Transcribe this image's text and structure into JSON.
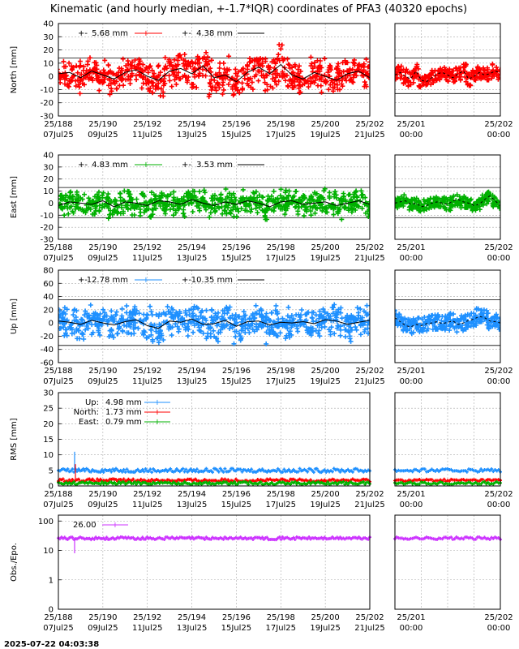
{
  "title": "Kinematic (and hourly median, +-1.7*IQR) coordinates of PFA3 (40320 epochs)",
  "timestamp": "2025-07-22 04:03:38",
  "colors": {
    "north": "#ff0000",
    "east": "#00b000",
    "up": "#1e90ff",
    "obs": "#cc33ff",
    "median": "#000000",
    "grid": "#aaaaaa"
  },
  "chart_data": [
    {
      "type": "scatter",
      "name": "north",
      "ylabel": "North [mm]",
      "ylim": [
        -30,
        40
      ],
      "yticks": [
        "40",
        "30",
        "20",
        "10",
        "0",
        "-10",
        "-20",
        "-30"
      ],
      "iqr_band": [
        -13,
        14
      ],
      "series": [
        {
          "name": "5.68 mm",
          "color": "#ff0000",
          "x": [
            188,
            188.5,
            189,
            189.5,
            190,
            190.5,
            191,
            191.5,
            192,
            192.5,
            193,
            193.5,
            194,
            194.5,
            195,
            195.5,
            196,
            196.5,
            197,
            197.5,
            198,
            198.5,
            199,
            199.5,
            200,
            200.5,
            201,
            201.5,
            202
          ],
          "y": [
            2,
            3,
            -1,
            4,
            1,
            -2,
            3,
            5,
            0,
            -3,
            4,
            6,
            2,
            8,
            -1,
            1,
            -4,
            3,
            7,
            2,
            9,
            1,
            -2,
            3,
            0,
            -3,
            2,
            4,
            -1
          ],
          "spread": [
            10,
            11,
            12,
            10,
            11,
            12,
            13,
            10,
            14,
            12,
            11,
            13,
            15,
            12,
            13,
            14,
            12,
            13,
            11,
            14,
            15,
            12,
            10,
            11,
            12,
            13,
            11,
            12,
            14
          ]
        },
        {
          "name": "4.38 mm",
          "color": "#000000"
        }
      ],
      "zoom_x": [
        201,
        202
      ],
      "zoom_y": [
        1,
        3,
        0,
        -2,
        4,
        -3,
        -4,
        -1,
        2,
        3,
        1,
        -1,
        2,
        4,
        -2,
        0,
        3,
        1,
        2,
        4,
        3
      ],
      "xticks_main": [
        "25/188",
        "25/190",
        "25/192",
        "25/194",
        "25/196",
        "25/198",
        "25/200",
        "25/202"
      ],
      "xtick_dates": [
        "07Jul25",
        "09Jul25",
        "11Jul25",
        "13Jul25",
        "15Jul25",
        "17Jul25",
        "19Jul25",
        "21Jul25"
      ],
      "xticks_zoom": [
        "25/201",
        "25/202"
      ],
      "xtick_zoom_times": [
        "00:00",
        "00:00"
      ]
    },
    {
      "type": "scatter",
      "name": "east",
      "ylabel": "East [mm]",
      "ylim": [
        -30,
        40
      ],
      "yticks": [
        "40",
        "30",
        "20",
        "10",
        "0",
        "-10",
        "-20",
        "-30"
      ],
      "iqr_band": [
        -12,
        13
      ],
      "series": [
        {
          "name": "4.83 mm",
          "color": "#00b000",
          "x": [
            188,
            188.5,
            189,
            189.5,
            190,
            190.5,
            191,
            191.5,
            192,
            192.5,
            193,
            193.5,
            194,
            194.5,
            195,
            195.5,
            196,
            196.5,
            197,
            197.5,
            198,
            198.5,
            199,
            199.5,
            200,
            200.5,
            201,
            201.5,
            202
          ],
          "y": [
            -2,
            1,
            0,
            -1,
            2,
            -3,
            1,
            0,
            -2,
            2,
            1,
            -1,
            3,
            0,
            -2,
            1,
            -1,
            2,
            0,
            -3,
            1,
            2,
            -1,
            0,
            1,
            -2,
            0,
            2,
            -1
          ],
          "spread": [
            9,
            10,
            9,
            8,
            10,
            11,
            9,
            10,
            12,
            9,
            10,
            11,
            9,
            10,
            9,
            10,
            11,
            9,
            12,
            13,
            10,
            9,
            10,
            9,
            10,
            11,
            9,
            10,
            12
          ]
        },
        {
          "name": "3.53 mm",
          "color": "#000000"
        }
      ],
      "zoom_x": [
        201,
        202
      ],
      "zoom_y": [
        0,
        1,
        2,
        -1,
        0,
        -3,
        -2,
        0,
        1,
        0,
        -1,
        2,
        3,
        1,
        0,
        -2,
        -1,
        3,
        6,
        2,
        -2
      ],
      "xticks_main": [
        "25/188",
        "25/190",
        "25/192",
        "25/194",
        "25/196",
        "25/198",
        "25/200",
        "25/202"
      ],
      "xtick_dates": [
        "07Jul25",
        "09Jul25",
        "11Jul25",
        "13Jul25",
        "15Jul25",
        "17Jul25",
        "19Jul25",
        "21Jul25"
      ],
      "xticks_zoom": [
        "25/201",
        "25/202"
      ],
      "xtick_zoom_times": [
        "00:00",
        "00:00"
      ]
    },
    {
      "type": "scatter",
      "name": "up",
      "ylabel": "Up [mm]",
      "ylim": [
        -60,
        80
      ],
      "yticks": [
        "80",
        "60",
        "40",
        "20",
        "0",
        "-20",
        "-40",
        "-60"
      ],
      "iqr_band": [
        -34,
        35
      ],
      "series": [
        {
          "name": "12.78 mm",
          "color": "#1e90ff",
          "x": [
            188,
            188.5,
            189,
            189.5,
            190,
            190.5,
            191,
            191.5,
            192,
            192.5,
            193,
            193.5,
            194,
            194.5,
            195,
            195.5,
            196,
            196.5,
            197,
            197.5,
            198,
            198.5,
            199,
            199.5,
            200,
            200.5,
            201,
            201.5,
            202
          ],
          "y": [
            3,
            1,
            -2,
            4,
            0,
            -3,
            2,
            5,
            -4,
            -8,
            3,
            1,
            6,
            -2,
            -1,
            4,
            -5,
            2,
            3,
            -3,
            1,
            0,
            2,
            -1,
            5,
            3,
            -2,
            1,
            4
          ],
          "spread": [
            22,
            24,
            23,
            21,
            22,
            25,
            24,
            22,
            26,
            24,
            22,
            23,
            25,
            22,
            24,
            26,
            25,
            23,
            22,
            27,
            24,
            22,
            23,
            22,
            25,
            24,
            23,
            22,
            24
          ]
        },
        {
          "name": "10.35 mm",
          "color": "#000000"
        }
      ],
      "zoom_x": [
        201,
        202
      ],
      "zoom_y": [
        8,
        2,
        -4,
        -6,
        -2,
        -4,
        -1,
        0,
        2,
        -1,
        1,
        3,
        -2,
        0,
        4,
        6,
        10,
        8,
        3,
        2,
        0
      ],
      "xticks_main": [
        "25/188",
        "25/190",
        "25/192",
        "25/194",
        "25/196",
        "25/198",
        "25/200",
        "25/202"
      ],
      "xtick_dates": [
        "07Jul25",
        "09Jul25",
        "11Jul25",
        "13Jul25",
        "15Jul25",
        "17Jul25",
        "19Jul25",
        "21Jul25"
      ],
      "xticks_zoom": [
        "25/201",
        "25/202"
      ],
      "xtick_zoom_times": [
        "00:00",
        "00:00"
      ]
    },
    {
      "type": "line",
      "name": "rms",
      "ylabel": "RMS [mm]",
      "ylim": [
        0,
        30
      ],
      "yticks": [
        "30",
        "25",
        "20",
        "15",
        "10",
        "5",
        "0"
      ],
      "series": [
        {
          "name": "Up:",
          "value": "4.98 mm",
          "color": "#1e90ff",
          "level": 5.0
        },
        {
          "name": "North:",
          "value": "1.73 mm",
          "color": "#ff0000",
          "level": 1.8
        },
        {
          "name": "East:",
          "value": "0.79 mm",
          "color": "#00b000",
          "level": 0.9
        }
      ],
      "xticks_main": [
        "25/188",
        "25/190",
        "25/192",
        "25/194",
        "25/196",
        "25/198",
        "25/200",
        "25/202"
      ],
      "xtick_dates": [
        "07Jul25",
        "09Jul25",
        "11Jul25",
        "13Jul25",
        "15Jul25",
        "17Jul25",
        "19Jul25",
        "21Jul25"
      ],
      "xticks_zoom": [
        "25/201",
        "25/202"
      ],
      "xtick_zoom_times": [
        "00:00",
        "00:00"
      ]
    },
    {
      "type": "line",
      "name": "obs",
      "ylabel": "Obs./Epo.",
      "yscale": "log",
      "yticks": [
        "100",
        "10",
        "1",
        "0"
      ],
      "series": [
        {
          "name": "26.00",
          "color": "#cc33ff",
          "level": 26
        }
      ],
      "xticks_main": [
        "25/188",
        "25/190",
        "25/192",
        "25/194",
        "25/196",
        "25/198",
        "25/200",
        "25/202"
      ],
      "xtick_dates": [
        "07Jul25",
        "09Jul25",
        "11Jul25",
        "13Jul25",
        "15Jul25",
        "17Jul25",
        "19Jul25",
        "21Jul25"
      ],
      "xticks_zoom": [
        "25/201",
        "25/202"
      ],
      "xtick_zoom_times": [
        "00:00",
        "00:00"
      ]
    }
  ]
}
